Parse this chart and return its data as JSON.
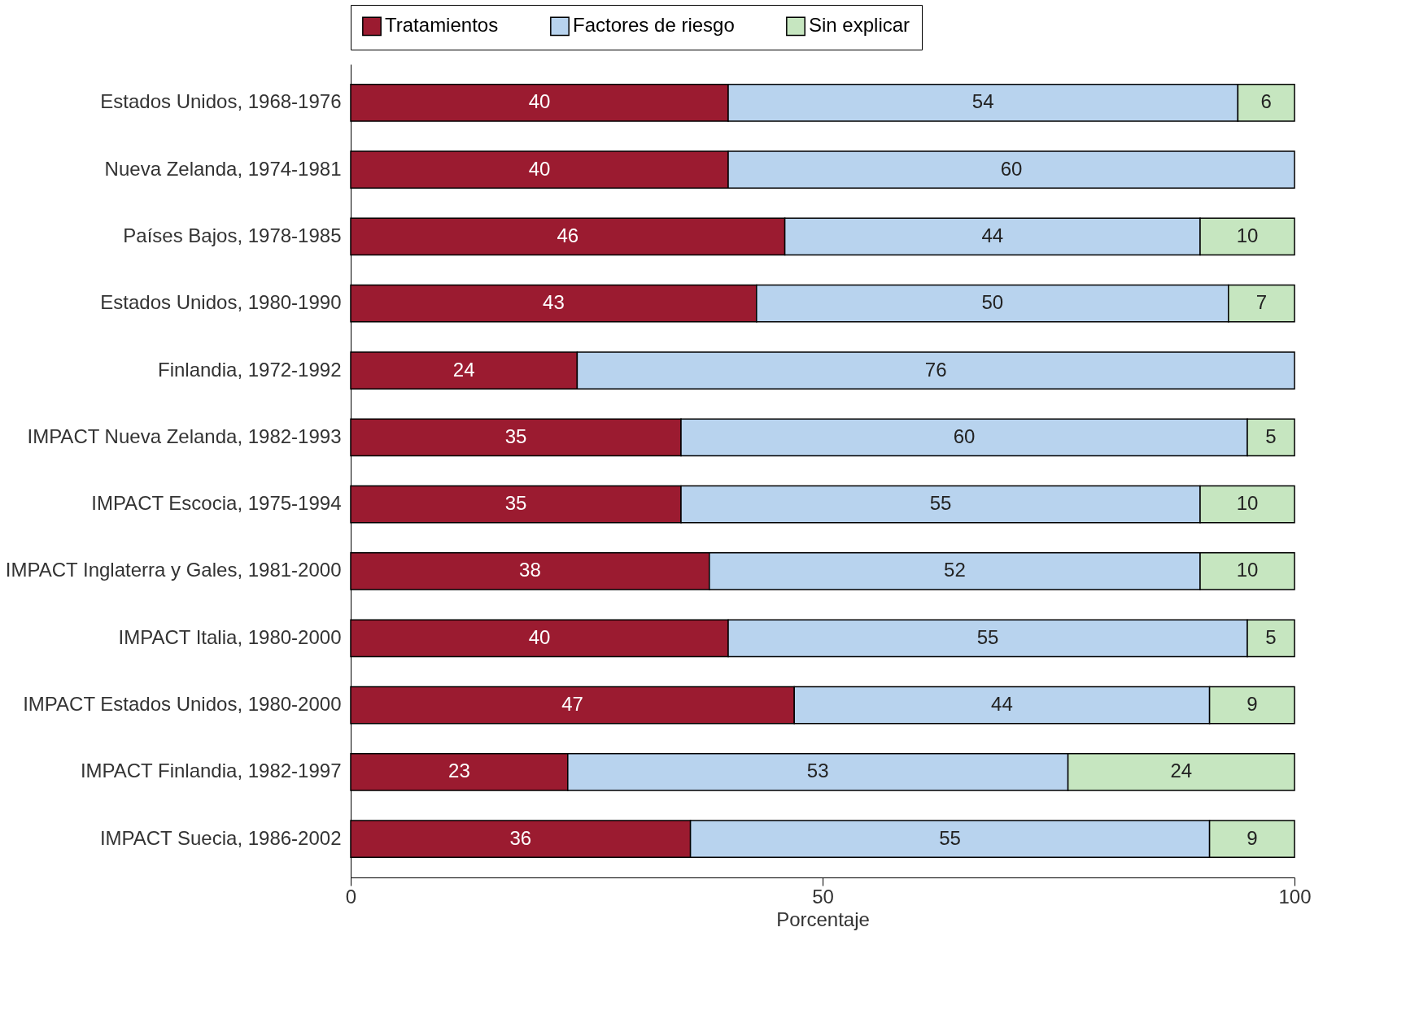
{
  "chart_data": {
    "type": "bar",
    "orientation": "horizontal",
    "stacked": true,
    "data_labels": true,
    "legend": "top",
    "grid": false,
    "xlabel": "Porcentaje",
    "xlim": [
      0,
      100
    ],
    "xticks": [
      0,
      50,
      100
    ],
    "categories": [
      "Estados Unidos, 1968-1976",
      "Nueva Zelanda, 1974-1981",
      "Países Bajos, 1978-1985",
      "Estados Unidos, 1980-1990",
      "Finlandia, 1972-1992",
      "IMPACT Nueva Zelanda, 1982-1993",
      "IMPACT Escocia, 1975-1994",
      "IMPACT Inglaterra y Gales, 1981-2000",
      "IMPACT Italia, 1980-2000",
      "IMPACT Estados Unidos, 1980-2000",
      "IMPACT Finlandia, 1982-1997",
      "IMPACT Suecia, 1986-2002"
    ],
    "series": [
      {
        "name": "Tratamientos",
        "color": "#9b1b30",
        "values": [
          40,
          40,
          46,
          43,
          24,
          35,
          35,
          38,
          40,
          47,
          23,
          36
        ]
      },
      {
        "name": "Factores de riesgo",
        "color": "#b8d3ee",
        "values": [
          54,
          60,
          44,
          50,
          76,
          60,
          55,
          52,
          55,
          44,
          53,
          55
        ]
      },
      {
        "name": "Sin explicar",
        "color": "#c6e6c0",
        "values": [
          6,
          null,
          10,
          7,
          null,
          5,
          10,
          10,
          5,
          9,
          24,
          9
        ]
      }
    ]
  }
}
